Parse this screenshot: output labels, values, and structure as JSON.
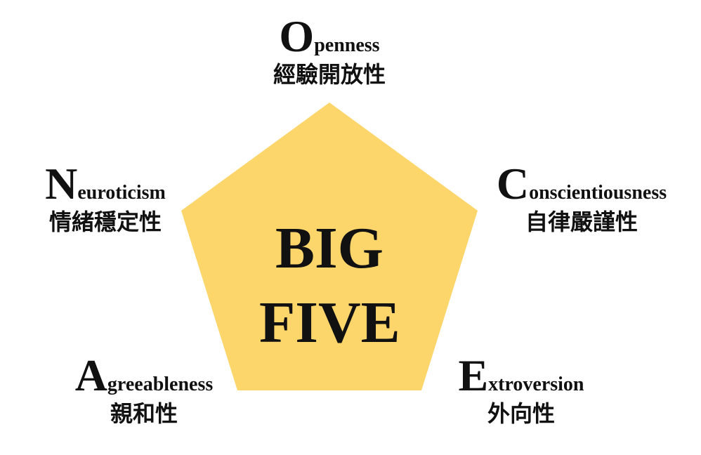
{
  "diagram": {
    "fill_color": "#fdd66b",
    "center": {
      "line1": "BIG",
      "line2": "FIVE"
    },
    "traits": {
      "openness": {
        "initial": "O",
        "rest": "penness",
        "zh": "經驗開放性"
      },
      "conscientiousness": {
        "initial": "C",
        "rest": "onscientiousness",
        "zh": "自律嚴謹性"
      },
      "neuroticism": {
        "initial": "N",
        "rest": "euroticism",
        "zh": "情緒穩定性"
      },
      "agreeableness": {
        "initial": "A",
        "rest": "greeableness",
        "zh": "親和性"
      },
      "extroversion": {
        "initial": "E",
        "rest": "xtroversion",
        "zh": "外向性"
      }
    }
  }
}
